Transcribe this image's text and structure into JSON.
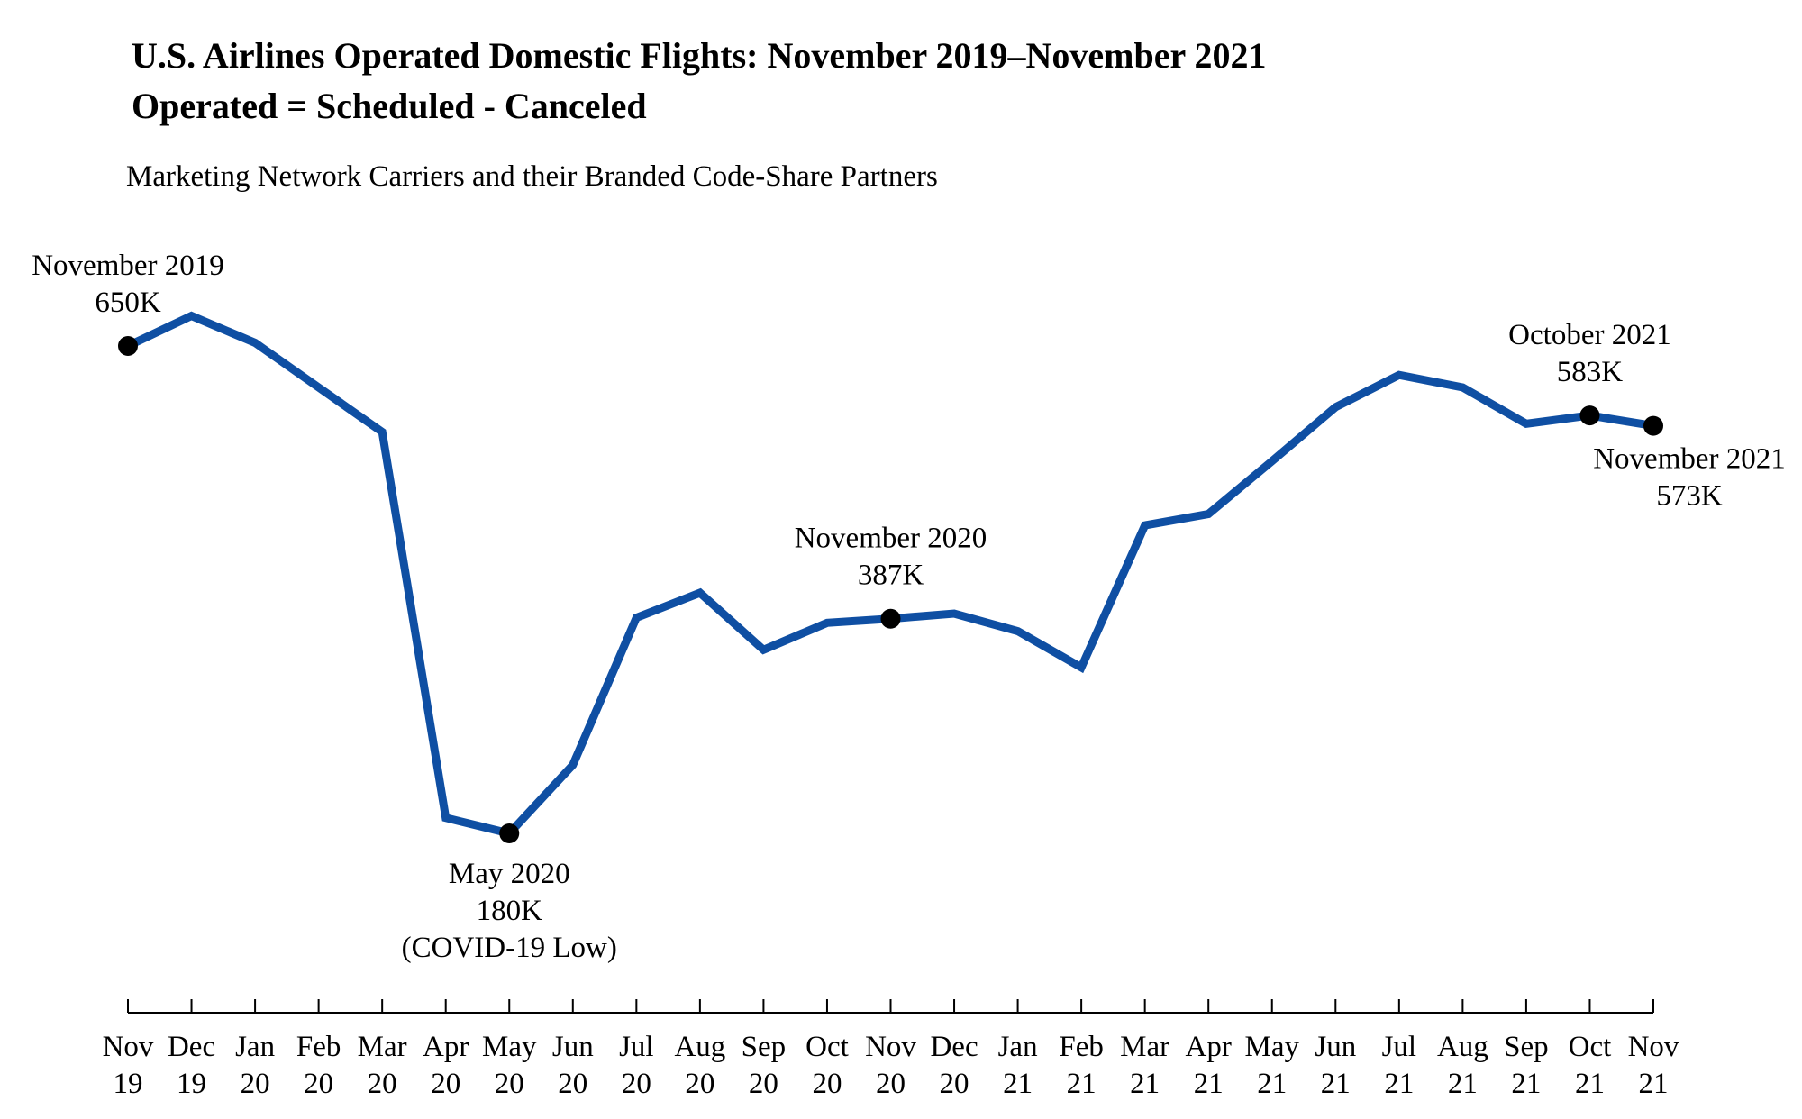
{
  "title_line_1": "U.S. Airlines Operated Domestic Flights: November 2019–November 2021",
  "title_line_2": "Operated = Scheduled - Canceled",
  "subtitle": "Marketing Network Carriers and their Branded Code-Share Partners",
  "colors": {
    "line": "#0f4fa3",
    "marker": "#000000",
    "axis": "#000000"
  },
  "chart_data": {
    "type": "line",
    "title": "U.S. Airlines Operated Domestic Flights: November 2019–November 2021",
    "subtitle": "Operated = Scheduled - Canceled",
    "xlabel": "",
    "ylabel": "",
    "grid": false,
    "y_axis_shown": false,
    "categories": [
      [
        "Nov",
        "19"
      ],
      [
        "Dec",
        "19"
      ],
      [
        "Jan",
        "20"
      ],
      [
        "Feb",
        "20"
      ],
      [
        "Mar",
        "20"
      ],
      [
        "Apr",
        "20"
      ],
      [
        "May",
        "20"
      ],
      [
        "Jun",
        "20"
      ],
      [
        "Jul",
        "20"
      ],
      [
        "Aug",
        "20"
      ],
      [
        "Sep",
        "20"
      ],
      [
        "Oct",
        "20"
      ],
      [
        "Nov",
        "20"
      ],
      [
        "Dec",
        "20"
      ],
      [
        "Jan",
        "21"
      ],
      [
        "Feb",
        "21"
      ],
      [
        "Mar",
        "21"
      ],
      [
        "Apr",
        "21"
      ],
      [
        "May",
        "21"
      ],
      [
        "Jun",
        "21"
      ],
      [
        "Jul",
        "21"
      ],
      [
        "Aug",
        "21"
      ],
      [
        "Sep",
        "21"
      ],
      [
        "Oct",
        "21"
      ],
      [
        "Nov",
        "21"
      ]
    ],
    "series": [
      {
        "values": [
          650,
          679,
          653,
          610,
          567,
          195,
          180,
          246,
          388,
          412,
          357,
          383,
          387,
          392,
          375,
          340,
          477,
          488,
          539,
          591,
          622,
          610,
          575,
          583,
          573
        ]
      }
    ],
    "ylim": [
      0,
      700
    ],
    "annotations": [
      {
        "index": 0,
        "lines": [
          "November 2019",
          "650K"
        ],
        "position": "above"
      },
      {
        "index": 6,
        "lines": [
          "May 2020",
          "180K",
          "(COVID-19 Low)"
        ],
        "position": "below"
      },
      {
        "index": 12,
        "lines": [
          "November 2020",
          "387K"
        ],
        "position": "above"
      },
      {
        "index": 23,
        "lines": [
          "October 2021",
          "583K"
        ],
        "position": "above"
      },
      {
        "index": 24,
        "lines": [
          "November 2021",
          "573K"
        ],
        "position": "below-right"
      }
    ]
  }
}
